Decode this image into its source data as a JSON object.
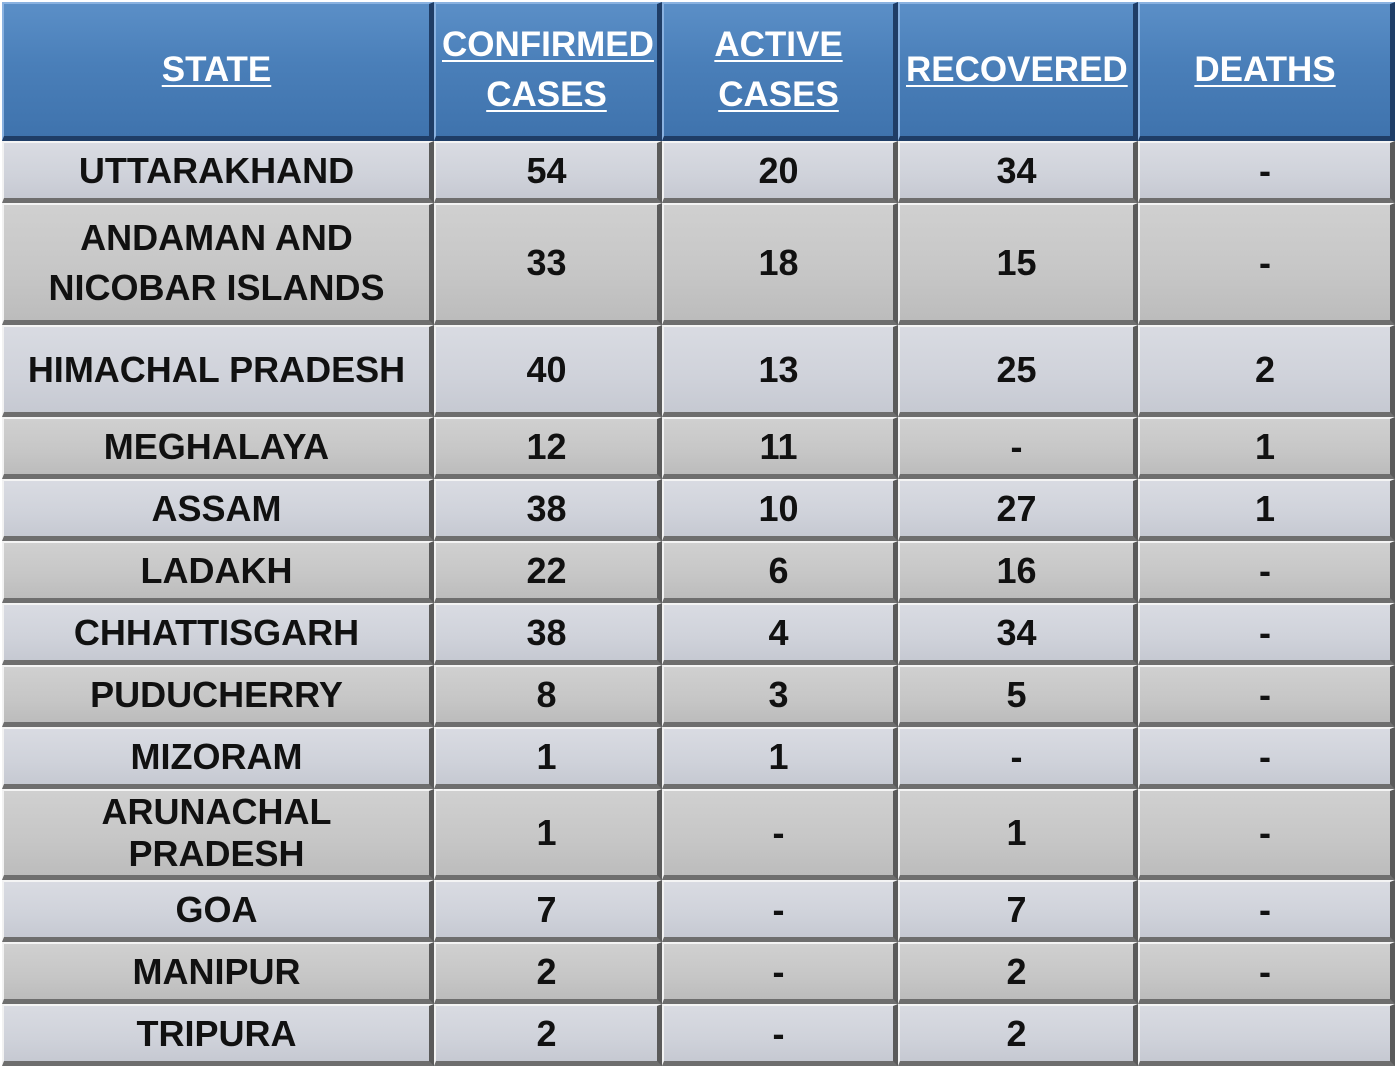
{
  "chart_data": {
    "type": "table",
    "columns": [
      "STATE",
      "CONFIRMED CASES",
      "ACTIVE CASES",
      "RECOVERED",
      "DEATHS"
    ],
    "rows": [
      [
        "UTTARAKHAND",
        "54",
        "20",
        "34",
        "-"
      ],
      [
        "ANDAMAN AND NICOBAR ISLANDS",
        "33",
        "18",
        "15",
        "-"
      ],
      [
        "HIMACHAL PRADESH",
        "40",
        "13",
        "25",
        "2"
      ],
      [
        "MEGHALAYA",
        "12",
        "11",
        "-",
        "1"
      ],
      [
        "ASSAM",
        "38",
        "10",
        "27",
        "1"
      ],
      [
        "LADAKH",
        "22",
        "6",
        "16",
        "-"
      ],
      [
        "CHHATTISGARH",
        "38",
        "4",
        "34",
        "-"
      ],
      [
        "PUDUCHERRY",
        "8",
        "3",
        "5",
        "-"
      ],
      [
        "MIZORAM",
        "1",
        "1",
        "-",
        "-"
      ],
      [
        "ARUNACHAL PRADESH",
        "1",
        "-",
        "1",
        "-"
      ],
      [
        "GOA",
        "7",
        "-",
        "7",
        "-"
      ],
      [
        "MANIPUR",
        "2",
        "-",
        "2",
        "-"
      ],
      [
        "TRIPURA",
        "2",
        "-",
        "2",
        ""
      ]
    ]
  },
  "colors": {
    "header_bg": "#4a7fb9",
    "header_text": "#ffffff",
    "row_light": "#cfd2da",
    "row_dark": "#c6c6c6",
    "cell_text": "#111111"
  }
}
